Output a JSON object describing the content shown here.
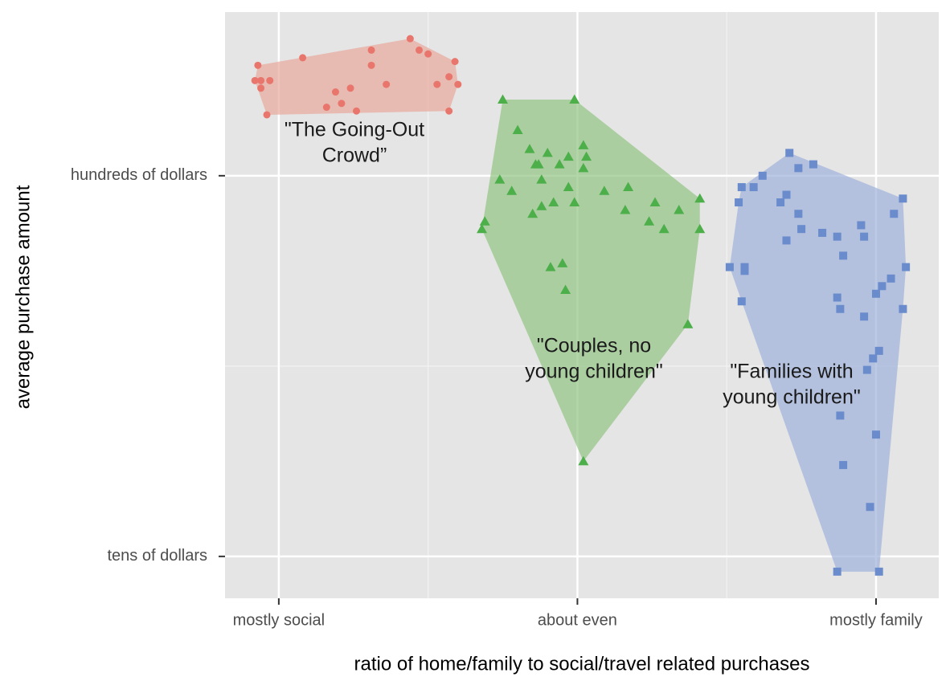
{
  "chart_data": {
    "type": "scatter",
    "xlabel": "ratio of home/family to social/travel related purchases",
    "ylabel": "average purchase amount",
    "xlim": [
      0.82,
      3.21
    ],
    "ylim": [
      0.89,
      2.43
    ],
    "xticks": [
      {
        "value": 1,
        "label": "mostly social"
      },
      {
        "value": 2,
        "label": "about even"
      },
      {
        "value": 3,
        "label": "mostly family"
      }
    ],
    "yticks": [
      {
        "value": 1,
        "label": "tens of dollars"
      },
      {
        "value": 2,
        "label": "hundreds of dollars"
      }
    ],
    "x_minor_grid": [
      1.5,
      2.5
    ],
    "y_minor_grid": [
      1.5
    ],
    "grid": true,
    "hulls": true,
    "series": [
      {
        "color": "#e8766c",
        "hull_color": "#e8a89c",
        "marker": "circle",
        "x": [
          0.93,
          0.92,
          0.94,
          0.97,
          0.94,
          0.96,
          1.08,
          1.16,
          1.19,
          1.21,
          1.24,
          1.26,
          1.31,
          1.31,
          1.36,
          1.44,
          1.47,
          1.5,
          1.53,
          1.57,
          1.57,
          1.59,
          1.6
        ],
        "values": [
          2.29,
          2.25,
          2.25,
          2.25,
          2.23,
          2.16,
          2.31,
          2.18,
          2.22,
          2.19,
          2.23,
          2.17,
          2.33,
          2.29,
          2.24,
          2.36,
          2.33,
          2.32,
          2.24,
          2.26,
          2.17,
          2.3,
          2.24
        ]
      },
      {
        "color": "#4daf4a",
        "hull_color": "#93c584",
        "marker": "triangle",
        "x": [
          1.75,
          1.99,
          1.8,
          1.84,
          1.87,
          1.9,
          1.94,
          1.97,
          2.02,
          2.03,
          2.02,
          1.86,
          1.74,
          1.78,
          1.88,
          1.97,
          1.85,
          1.88,
          1.92,
          1.99,
          2.09,
          2.17,
          2.16,
          2.26,
          2.34,
          2.41,
          2.24,
          2.29,
          2.41,
          1.69,
          1.68,
          1.91,
          1.95,
          1.96,
          2.37,
          2.02
        ],
        "values": [
          2.2,
          2.2,
          2.12,
          2.07,
          2.03,
          2.06,
          2.03,
          2.05,
          2.08,
          2.05,
          2.02,
          2.03,
          1.99,
          1.96,
          1.99,
          1.97,
          1.9,
          1.92,
          1.93,
          1.93,
          1.96,
          1.97,
          1.91,
          1.93,
          1.91,
          1.94,
          1.88,
          1.86,
          1.86,
          1.88,
          1.86,
          1.76,
          1.77,
          1.7,
          1.61,
          1.25
        ]
      },
      {
        "color": "#6a8ccc",
        "hull_color": "#9fb2dc",
        "marker": "square",
        "x": [
          2.71,
          2.79,
          2.62,
          2.74,
          2.55,
          2.59,
          2.7,
          2.54,
          2.68,
          2.74,
          2.75,
          2.7,
          2.82,
          2.87,
          2.95,
          2.96,
          3.09,
          3.06,
          2.89,
          2.51,
          2.56,
          2.56,
          2.55,
          3.1,
          3.05,
          3.02,
          3.0,
          2.87,
          2.88,
          3.09,
          2.96,
          3.01,
          2.99,
          2.97,
          2.88,
          3.0,
          2.89,
          2.98,
          2.87,
          3.01
        ],
        "values": [
          2.06,
          2.03,
          2.0,
          2.02,
          1.97,
          1.97,
          1.95,
          1.93,
          1.93,
          1.9,
          1.86,
          1.83,
          1.85,
          1.84,
          1.87,
          1.84,
          1.94,
          1.9,
          1.79,
          1.76,
          1.76,
          1.75,
          1.67,
          1.76,
          1.73,
          1.71,
          1.69,
          1.68,
          1.65,
          1.65,
          1.63,
          1.54,
          1.52,
          1.49,
          1.37,
          1.32,
          1.24,
          1.13,
          0.96,
          0.96
        ]
      }
    ],
    "annotations": [
      {
        "lines": [
          "\"The Going-Out",
          "Crowd”"
        ]
      },
      {
        "lines": [
          "\"Couples, no",
          "young children\""
        ]
      },
      {
        "lines": [
          "\"Families with",
          "young children\""
        ]
      }
    ]
  }
}
